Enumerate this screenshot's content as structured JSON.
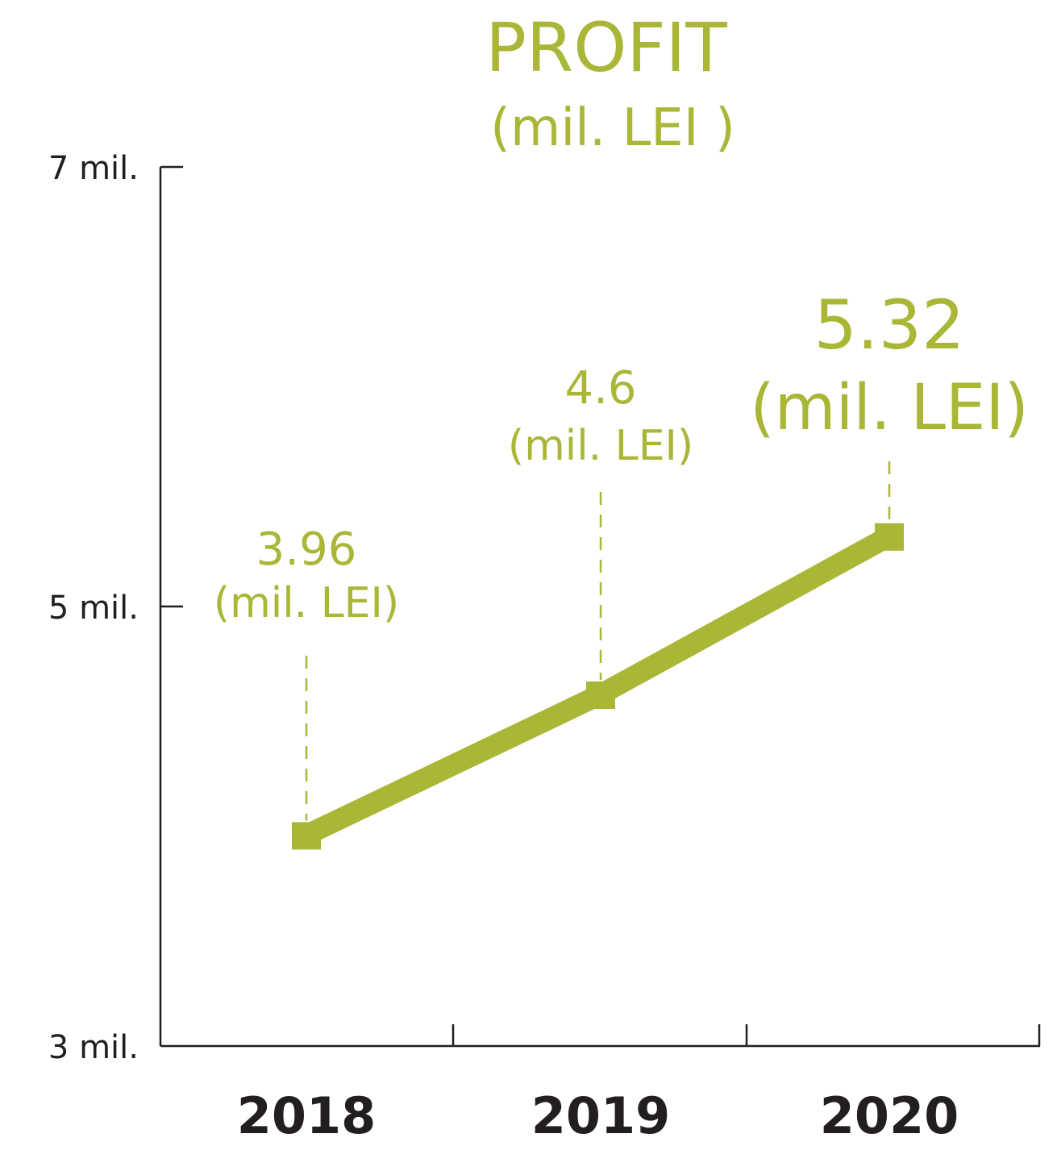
{
  "chart_data": {
    "type": "line",
    "title": "PROFIT",
    "subtitle": "(mil. LEI )",
    "categories": [
      "2018",
      "2019",
      "2020"
    ],
    "values": [
      3.96,
      4.6,
      5.32
    ],
    "value_labels": [
      "3.96",
      "4.6",
      "5.32"
    ],
    "value_units": [
      "(mil. LEI)",
      "(mil. LEI)",
      "(mil. LEI)"
    ],
    "y_ticks": [
      {
        "value": 7,
        "label": "7 mil."
      },
      {
        "value": 5,
        "label": "5 mil."
      },
      {
        "value": 3,
        "label": "3 mil."
      }
    ],
    "ylim": [
      3,
      7
    ],
    "grid": false,
    "color": "#a9b636"
  }
}
